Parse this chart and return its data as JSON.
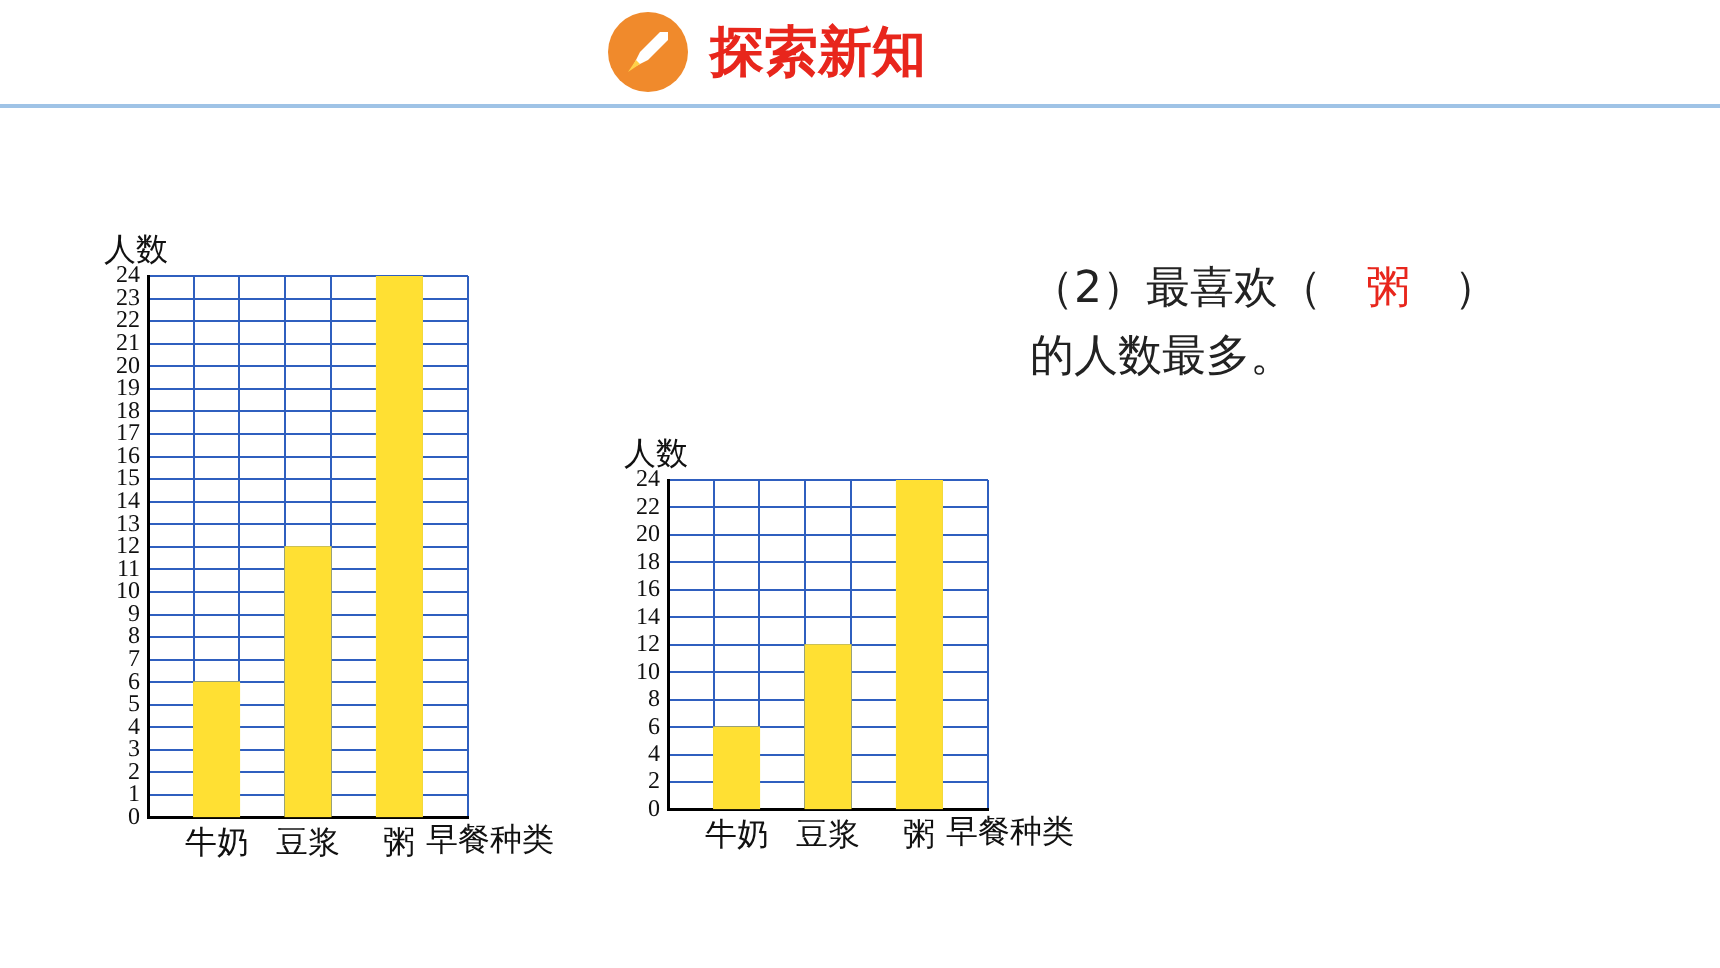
{
  "chart_data": [
    {
      "type": "bar",
      "ylabel": "人数",
      "xlabel": "早餐种类",
      "categories": [
        null,
        "牛奶",
        null,
        "豆浆",
        null,
        "粥",
        null
      ],
      "values": [
        null,
        6,
        null,
        12,
        null,
        24,
        null
      ],
      "color": "#ffe033",
      "ylim": [
        0,
        24
      ],
      "yticks": [
        0,
        1,
        2,
        3,
        4,
        5,
        6,
        7,
        8,
        9,
        10,
        11,
        12,
        13,
        14,
        15,
        16,
        17,
        18,
        19,
        20,
        21,
        22,
        23,
        24
      ],
      "grid": true
    },
    {
      "type": "bar",
      "ylabel": "人数",
      "xlabel": "早餐种类",
      "categories": [
        null,
        "牛奶",
        null,
        "豆浆",
        null,
        "粥",
        null
      ],
      "values": [
        null,
        6,
        null,
        12,
        null,
        24,
        null
      ],
      "color": "#ffe033",
      "ylim": [
        0,
        24
      ],
      "yticks": [
        0,
        2,
        4,
        6,
        8,
        10,
        12,
        14,
        16,
        18,
        20,
        22,
        24
      ],
      "grid": true
    },
    {
      "type": "other",
      "title": "探索新知",
      "annotations": [
        "（2）最喜欢（",
        "粥",
        "）",
        "的人数最多。"
      ]
    }
  ]
}
